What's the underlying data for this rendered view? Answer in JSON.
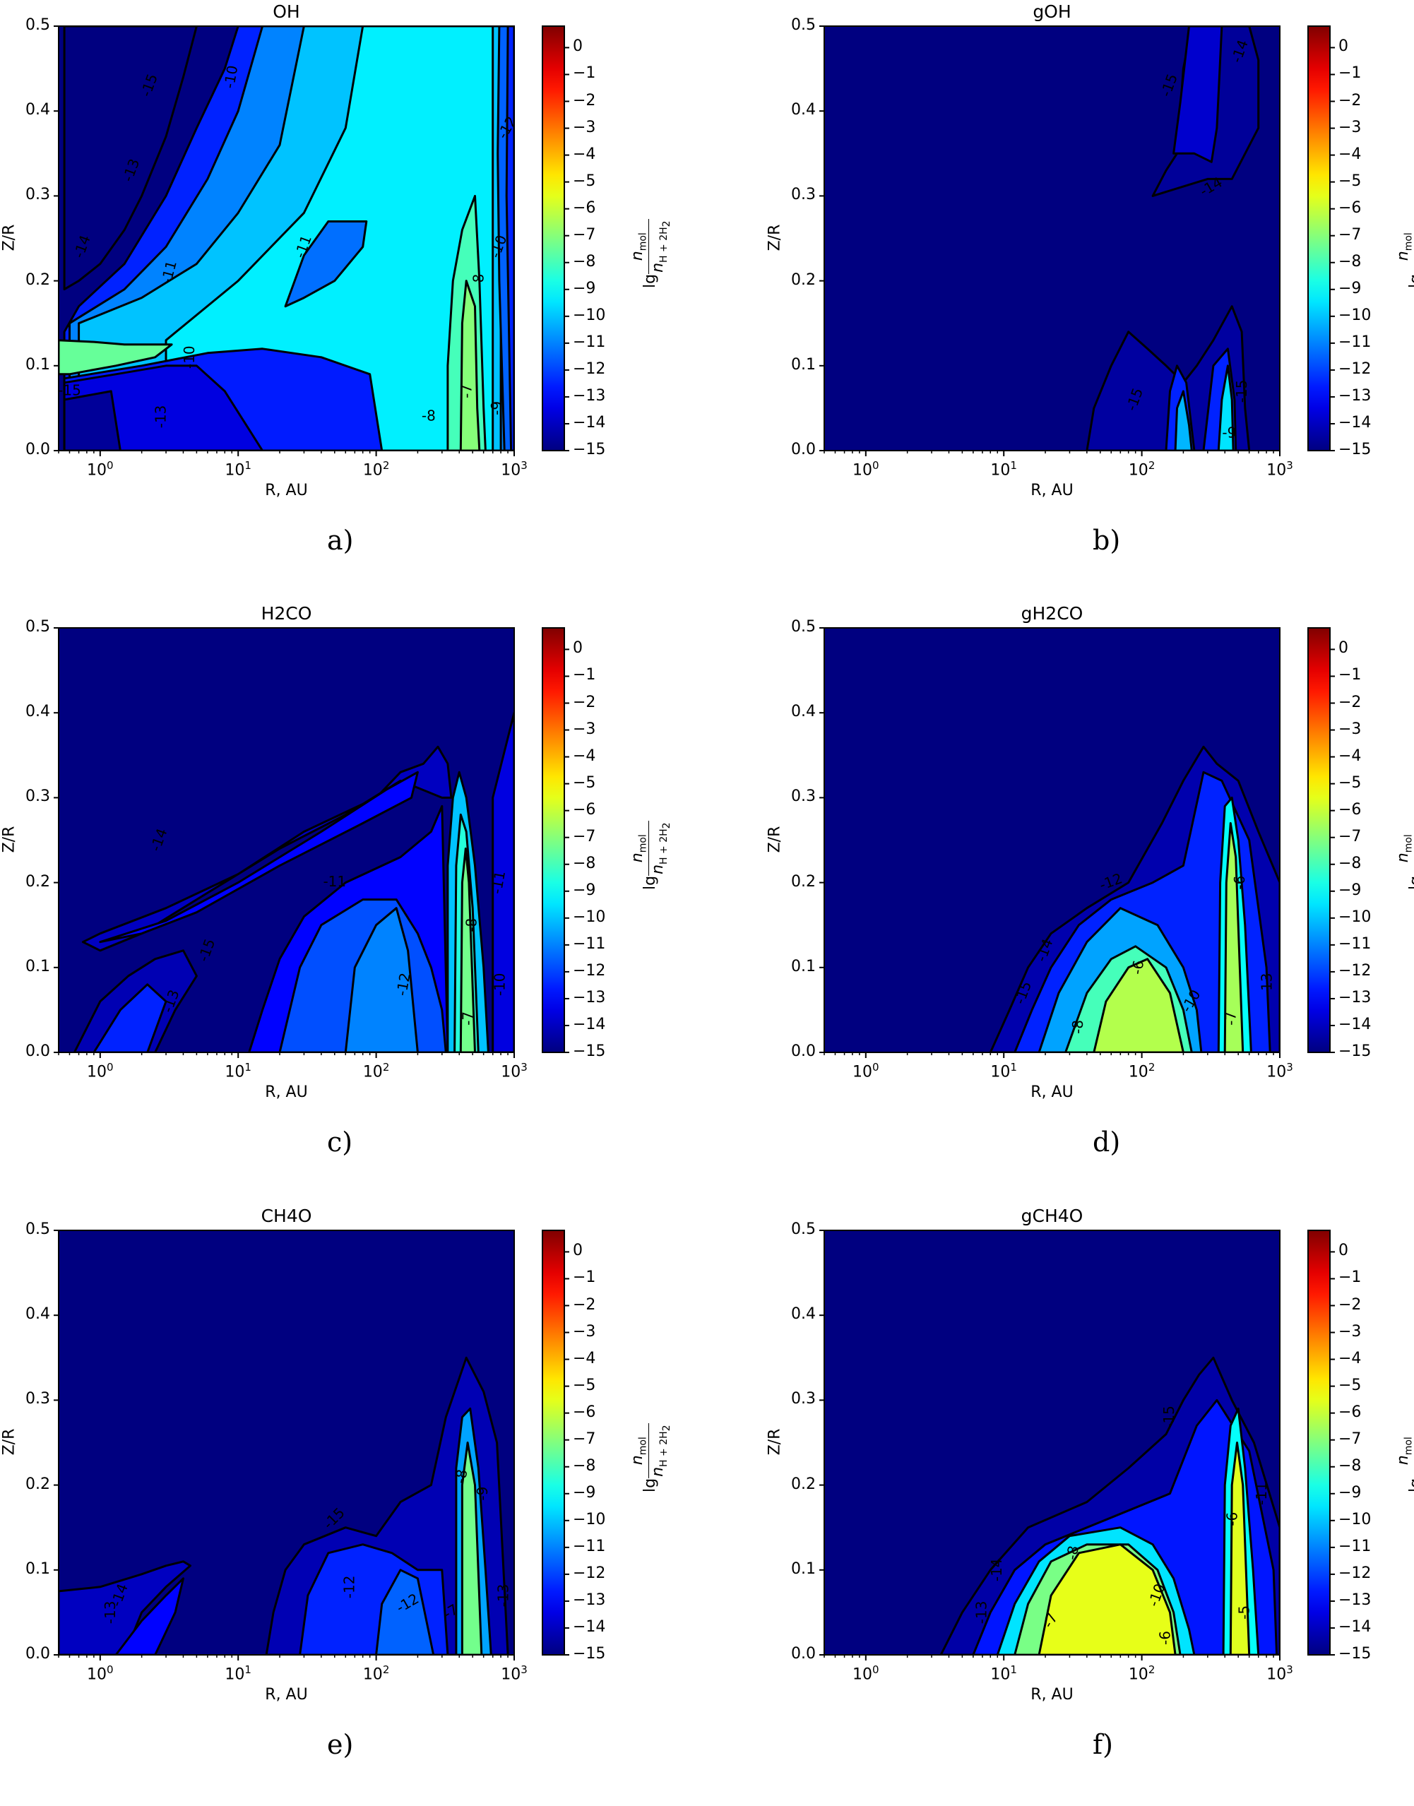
{
  "figure": {
    "colormap": "jet",
    "colors": {
      "background": "#00007f",
      "contour_line": "#000000",
      "axis": "#000000"
    }
  },
  "axes_common": {
    "xlabel": "R, AU",
    "ylabel": "Z/R",
    "xscale": "log",
    "xlim": [
      0.5,
      1000
    ],
    "ylim": [
      0.0,
      0.5
    ],
    "xticks": [
      {
        "base": "10",
        "exp": "0"
      },
      {
        "base": "10",
        "exp": "1"
      },
      {
        "base": "10",
        "exp": "2"
      },
      {
        "base": "10",
        "exp": "3"
      }
    ],
    "yticks": [
      "0.0",
      "0.1",
      "0.2",
      "0.3",
      "0.4",
      "0.5"
    ],
    "colorbar": {
      "label_prefix": "lg",
      "label_num": "n",
      "label_num_sub": "mol",
      "label_den": "n",
      "label_den_sub": "H + 2H",
      "label_den_sub2": "2",
      "ticks": [
        "0",
        "−1",
        "−2",
        "−3",
        "−4",
        "−5",
        "−6",
        "−7",
        "−8",
        "−9",
        "−10",
        "−11",
        "−12",
        "−13",
        "−14",
        "−15"
      ],
      "range": [
        -15,
        0.8
      ]
    }
  },
  "panels": [
    {
      "id": "a",
      "title": "OH",
      "sublabel": "a)"
    },
    {
      "id": "b",
      "title": "gOH",
      "sublabel": "b)"
    },
    {
      "id": "c",
      "title": "H2CO",
      "sublabel": "c)"
    },
    {
      "id": "d",
      "title": "gH2CO",
      "sublabel": "d)"
    },
    {
      "id": "e",
      "title": "CH4O",
      "sublabel": "e)"
    },
    {
      "id": "f",
      "title": "gCH4O",
      "sublabel": "f)"
    }
  ],
  "chart_data": [
    {
      "type": "heatmap",
      "title": "OH",
      "xlabel": "R, AU",
      "ylabel": "Z/R",
      "xscale": "log",
      "xlim": [
        0.5,
        1000
      ],
      "ylim": [
        0,
        0.5
      ],
      "colorbar_label": "lg n_mol / n_(H+2H2)",
      "colorbar_range": [
        -15,
        0
      ],
      "colormap": "jet",
      "contour_levels": [
        -15,
        -14,
        -13,
        -12,
        -11,
        -10,
        -9,
        -8,
        -7,
        -6
      ],
      "contour_labels_visible": [
        "-15",
        "-14",
        "-13",
        "-11",
        "-10",
        "-11",
        "-10",
        "-8",
        "-9",
        "-7",
        "-8",
        "-8",
        "-13",
        "-15",
        "-12",
        "-11",
        "-10"
      ],
      "description": "Dark blue (<-15) upper-left wedge; broad cyan (-10..-9) region over intermediate heights; green (-7..-8) band at R~300-700 AU near midplane and a thin green layer at Z/R~0.1 for R<3 AU; blue (-13..-11) interior near midplane for R<50 AU"
    },
    {
      "type": "heatmap",
      "title": "gOH",
      "xlabel": "R, AU",
      "ylabel": "Z/R",
      "xscale": "log",
      "xlim": [
        0.5,
        1000
      ],
      "ylim": [
        0,
        0.5
      ],
      "colorbar_range": [
        -15,
        0
      ],
      "colormap": "jet",
      "contour_labels_visible": [
        "-15",
        "-14",
        "-15",
        "-14",
        "-9"
      ],
      "description": "Mostly <-15; blue patch R~100-600 AU at Z/R 0.3-0.5 (~-14); cyan region (-9..-10) near midplane at R~150-500 AU"
    },
    {
      "type": "heatmap",
      "title": "H2CO",
      "xlabel": "R, AU",
      "ylabel": "Z/R",
      "xscale": "log",
      "xlim": [
        0.5,
        1000
      ],
      "ylim": [
        0,
        0.5
      ],
      "colorbar_range": [
        -15,
        0
      ],
      "colormap": "jet",
      "contour_labels_visible": [
        "-14",
        "-15",
        "-15",
        "-13",
        "-14",
        "-11",
        "-12",
        "-11",
        "-8",
        "-7",
        "-10"
      ],
      "description": "Diagonal blue filament from R~1 AU, Z/R 0.13 to R~300 AU, Z/R 0.35; blue region R 20-300 AU below Z/R 0.2 (~-11..-12); green column (-7) at R~400-600 AU, Z/R 0-0.28"
    },
    {
      "type": "heatmap",
      "title": "gH2CO",
      "xlabel": "R, AU",
      "ylabel": "Z/R",
      "xscale": "log",
      "xlim": [
        0.5,
        1000
      ],
      "ylim": [
        0,
        0.5
      ],
      "colorbar_range": [
        -15,
        0
      ],
      "colormap": "jet",
      "contour_labels_visible": [
        "-12",
        "-14",
        "-15",
        "-6",
        "-8",
        "-10",
        "-7",
        "-9",
        "-6",
        "-12",
        "-8",
        "-7",
        "-13"
      ],
      "description": "Yellow-green dome (-6) centered R~100 AU below Z/R 0.12; outer shells to -15 reaching R~8 AU; green column (-6..-7) at R~400-600 AU up to Z/R 0.28"
    },
    {
      "type": "heatmap",
      "title": "CH4O",
      "xlabel": "R, AU",
      "ylabel": "Z/R",
      "xscale": "log",
      "xlim": [
        0.5,
        1000
      ],
      "ylim": [
        0,
        0.5
      ],
      "colorbar_range": [
        -15,
        0
      ],
      "colormap": "jet",
      "contour_labels_visible": [
        "-13",
        "-14",
        "-15",
        "-12",
        "-12",
        "-13",
        "-11",
        "-7",
        "-8",
        "-9",
        "-13"
      ],
      "description": "Small blue wedge R<4 AU below Z/R 0.11 (~-14); blue region R 15-300 AU below Z/R 0.15 (~-12); green column (-7) at R~400-700 AU up to Z/R 0.29"
    },
    {
      "type": "heatmap",
      "title": "gCH4O",
      "xlabel": "R, AU",
      "ylabel": "Z/R",
      "xscale": "log",
      "xlim": [
        0.5,
        1000
      ],
      "ylim": [
        0,
        0.5
      ],
      "colorbar_range": [
        -15,
        0
      ],
      "colormap": "jet",
      "contour_labels_visible": [
        "-15",
        "-14",
        "-13",
        "-8",
        "-7",
        "-11",
        "-10",
        "-6",
        "-9",
        "-6",
        "-8",
        "-5",
        "-11"
      ],
      "description": "Large yellow dome (-5..-6) centered R~60 AU below Z/R 0.14; shells extending to R~4 AU; yellow column (-5..-6) at R~450-650 AU up to Z/R 0.29"
    }
  ]
}
